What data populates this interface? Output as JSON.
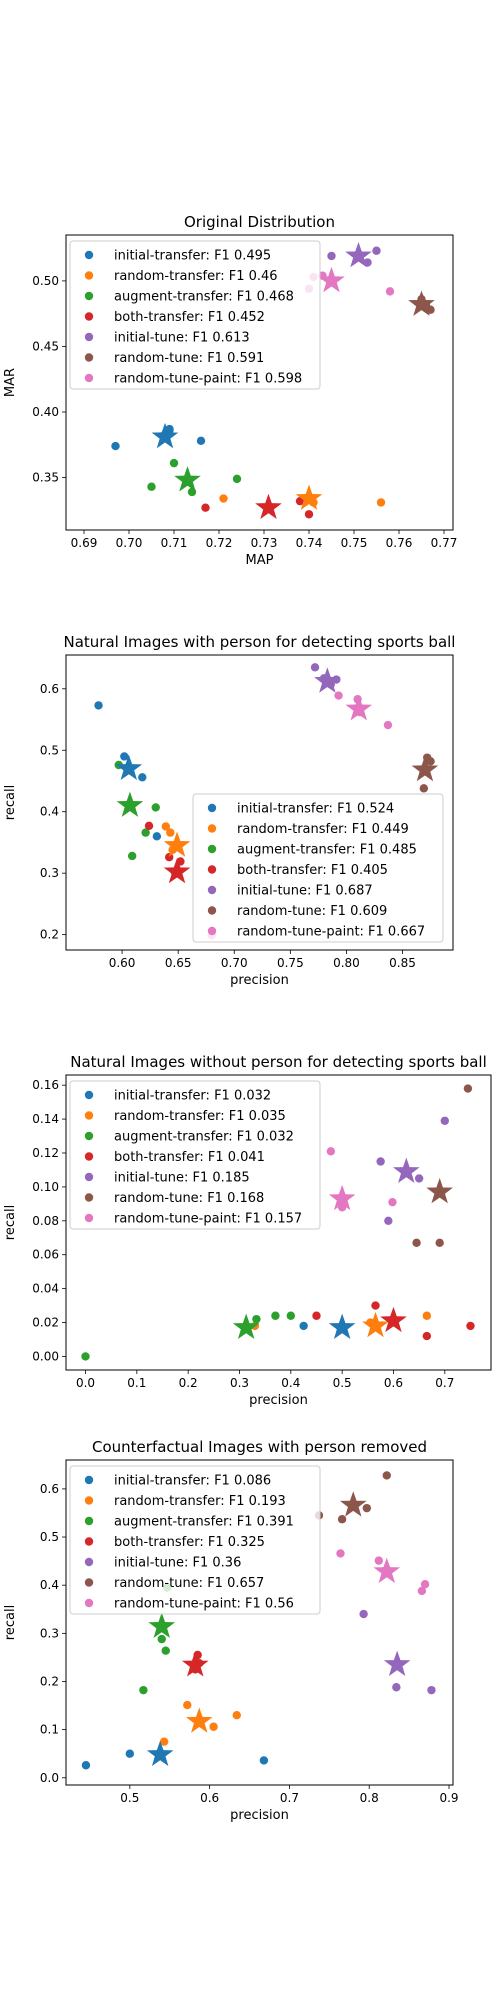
{
  "series_colors": [
    "#1f77b4",
    "#ff7f0e",
    "#2ca02c",
    "#d62728",
    "#9467bd",
    "#8c564b",
    "#e377c2"
  ],
  "chart_data": [
    {
      "type": "scatter",
      "title": "Original Distribution",
      "xlabel": "MAP",
      "ylabel": "MAR",
      "xlim": [
        0.686,
        0.772
      ],
      "ylim": [
        0.31,
        0.535
      ],
      "xticks": [
        0.69,
        0.7,
        0.71,
        0.72,
        0.73,
        0.74,
        0.75,
        0.76,
        0.77
      ],
      "xtick_labels": [
        "0.69",
        "0.70",
        "0.71",
        "0.72",
        "0.73",
        "0.74",
        "0.75",
        "0.76",
        "0.77"
      ],
      "yticks": [
        0.35,
        0.4,
        0.45,
        0.5
      ],
      "ytick_labels": [
        "0.35",
        "0.40",
        "0.45",
        "0.50"
      ],
      "legend_position": "upper-left",
      "series": [
        {
          "name": "initial-transfer: F1 0.495",
          "points": [
            [
              0.697,
              0.374
            ],
            [
              0.708,
              0.383
            ],
            [
              0.709,
              0.387
            ],
            [
              0.709,
              0.386
            ],
            [
              0.716,
              0.378
            ]
          ],
          "mean": [
            0.708,
            0.381
          ]
        },
        {
          "name": "random-transfer: F1 0.46",
          "points": [
            [
              0.721,
              0.334
            ],
            [
              0.74,
              0.334
            ],
            [
              0.741,
              0.331
            ],
            [
              0.756,
              0.331
            ]
          ],
          "mean": [
            0.74,
            0.334
          ]
        },
        {
          "name": "augment-transfer: F1 0.468",
          "points": [
            [
              0.705,
              0.343
            ],
            [
              0.71,
              0.361
            ],
            [
              0.714,
              0.339
            ],
            [
              0.724,
              0.349
            ]
          ],
          "mean": [
            0.713,
            0.348
          ]
        },
        {
          "name": "both-transfer: F1 0.452",
          "points": [
            [
              0.717,
              0.327
            ],
            [
              0.738,
              0.332
            ],
            [
              0.74,
              0.322
            ]
          ],
          "mean": [
            0.731,
            0.327
          ]
        },
        {
          "name": "initial-tune: F1 0.613",
          "points": [
            [
              0.745,
              0.519
            ],
            [
              0.753,
              0.514
            ],
            [
              0.755,
              0.523
            ]
          ],
          "mean": [
            0.751,
            0.519
          ]
        },
        {
          "name": "random-tune: F1 0.591",
          "points": [
            [
              0.765,
              0.486
            ],
            [
              0.766,
              0.482
            ],
            [
              0.767,
              0.478
            ]
          ],
          "mean": [
            0.765,
            0.482
          ]
        },
        {
          "name": "random-tune-paint: F1 0.598",
          "points": [
            [
              0.74,
              0.494
            ],
            [
              0.741,
              0.503
            ],
            [
              0.743,
              0.504
            ],
            [
              0.758,
              0.492
            ]
          ],
          "mean": [
            0.745,
            0.5
          ]
        }
      ]
    },
    {
      "type": "scatter",
      "title": "Natural Images with person for detecting sports ball",
      "xlabel": "precision",
      "ylabel": "recall",
      "xlim": [
        0.55,
        0.895
      ],
      "ylim": [
        0.175,
        0.655
      ],
      "xticks": [
        0.6,
        0.65,
        0.7,
        0.75,
        0.8,
        0.85
      ],
      "xtick_labels": [
        "0.60",
        "0.65",
        "0.70",
        "0.75",
        "0.80",
        "0.85"
      ],
      "yticks": [
        0.2,
        0.3,
        0.4,
        0.5,
        0.6
      ],
      "ytick_labels": [
        "0.2",
        "0.3",
        "0.4",
        "0.5",
        "0.6"
      ],
      "legend_position": "lower-right",
      "series": [
        {
          "name": "initial-transfer: F1 0.524",
          "points": [
            [
              0.579,
              0.573
            ],
            [
              0.602,
              0.49
            ],
            [
              0.618,
              0.456
            ],
            [
              0.631,
              0.36
            ]
          ],
          "mean": [
            0.606,
            0.47
          ]
        },
        {
          "name": "random-transfer: F1 0.449",
          "points": [
            [
              0.639,
              0.376
            ],
            [
              0.643,
              0.366
            ],
            [
              0.645,
              0.338
            ],
            [
              0.649,
              0.302
            ]
          ],
          "mean": [
            0.649,
            0.345
          ]
        },
        {
          "name": "augment-transfer: F1 0.485",
          "points": [
            [
              0.597,
              0.476
            ],
            [
              0.609,
              0.328
            ],
            [
              0.621,
              0.366
            ],
            [
              0.63,
              0.407
            ]
          ],
          "mean": [
            0.607,
            0.41
          ]
        },
        {
          "name": "both-transfer: F1 0.405",
          "points": [
            [
              0.624,
              0.377
            ],
            [
              0.642,
              0.326
            ],
            [
              0.647,
              0.302
            ],
            [
              0.652,
              0.319
            ]
          ],
          "mean": [
            0.649,
            0.302
          ]
        },
        {
          "name": "initial-tune: F1 0.687",
          "points": [
            [
              0.772,
              0.635
            ],
            [
              0.78,
              0.617
            ],
            [
              0.786,
              0.607
            ],
            [
              0.791,
              0.615
            ]
          ],
          "mean": [
            0.783,
            0.612
          ]
        },
        {
          "name": "random-tune: F1 0.609",
          "points": [
            [
              0.869,
              0.438
            ],
            [
              0.872,
              0.488
            ],
            [
              0.875,
              0.482
            ],
            [
              0.871,
              0.47
            ]
          ],
          "mean": [
            0.87,
            0.468
          ]
        },
        {
          "name": "random-tune-paint: F1 0.667",
          "points": [
            [
              0.68,
              0.199
            ],
            [
              0.793,
              0.589
            ],
            [
              0.81,
              0.583
            ],
            [
              0.812,
              0.562
            ],
            [
              0.837,
              0.541
            ]
          ],
          "mean": [
            0.811,
            0.567
          ]
        }
      ]
    },
    {
      "type": "scatter",
      "title": "Natural Images without person for detecting sports ball",
      "xlabel": "precision",
      "ylabel": "recall",
      "xlim": [
        -0.038,
        0.79
      ],
      "ylim": [
        -0.008,
        0.166
      ],
      "xticks": [
        0.0,
        0.1,
        0.2,
        0.3,
        0.4,
        0.5,
        0.6,
        0.7
      ],
      "xtick_labels": [
        "0.0",
        "0.1",
        "0.2",
        "0.3",
        "0.4",
        "0.5",
        "0.6",
        "0.7"
      ],
      "yticks": [
        0.0,
        0.02,
        0.04,
        0.06,
        0.08,
        0.1,
        0.12,
        0.14,
        0.16
      ],
      "ytick_labels": [
        "0.00",
        "0.02",
        "0.04",
        "0.06",
        "0.08",
        "0.10",
        "0.12",
        "0.14",
        "0.16"
      ],
      "legend_position": "upper-left",
      "series": [
        {
          "name": "initial-transfer: F1 0.032",
          "points": [
            [
              0.425,
              0.018
            ],
            [
              0.5,
              0.018
            ]
          ],
          "mean": [
            0.5,
            0.017
          ]
        },
        {
          "name": "random-transfer: F1 0.035",
          "points": [
            [
              0.33,
              0.018
            ],
            [
              0.555,
              0.02
            ],
            [
              0.665,
              0.024
            ]
          ],
          "mean": [
            0.565,
            0.018
          ]
        },
        {
          "name": "augment-transfer: F1 0.032",
          "points": [
            [
              0.0,
              0.0
            ],
            [
              0.333,
              0.022
            ],
            [
              0.37,
              0.024
            ],
            [
              0.4,
              0.024
            ]
          ],
          "mean": [
            0.313,
            0.017
          ]
        },
        {
          "name": "both-transfer: F1 0.041",
          "points": [
            [
              0.45,
              0.024
            ],
            [
              0.565,
              0.03
            ],
            [
              0.665,
              0.012
            ],
            [
              0.75,
              0.018
            ]
          ],
          "mean": [
            0.6,
            0.021
          ]
        },
        {
          "name": "initial-tune: F1 0.185",
          "points": [
            [
              0.575,
              0.115
            ],
            [
              0.59,
              0.08
            ],
            [
              0.65,
              0.105
            ],
            [
              0.7,
              0.139
            ]
          ],
          "mean": [
            0.625,
            0.109
          ]
        },
        {
          "name": "random-tune: F1 0.168",
          "points": [
            [
              0.645,
              0.067
            ],
            [
              0.69,
              0.067
            ],
            [
              0.745,
              0.158
            ]
          ],
          "mean": [
            0.69,
            0.097
          ]
        },
        {
          "name": "random-tune-paint: F1 0.157",
          "points": [
            [
              0.478,
              0.121
            ],
            [
              0.5,
              0.088
            ],
            [
              0.598,
              0.091
            ]
          ],
          "mean": [
            0.5,
            0.093
          ]
        }
      ]
    },
    {
      "type": "scatter",
      "title": "Counterfactual Images with person removed",
      "xlabel": "precision",
      "ylabel": "recall",
      "xlim": [
        0.42,
        0.905
      ],
      "ylim": [
        -0.015,
        0.66
      ],
      "xticks": [
        0.5,
        0.6,
        0.7,
        0.8,
        0.9
      ],
      "xtick_labels": [
        "0.5",
        "0.6",
        "0.7",
        "0.8",
        "0.9"
      ],
      "yticks": [
        0.0,
        0.1,
        0.2,
        0.3,
        0.4,
        0.5,
        0.6
      ],
      "ytick_labels": [
        "0.0",
        "0.1",
        "0.2",
        "0.3",
        "0.4",
        "0.5",
        "0.6"
      ],
      "legend_position": "upper-left",
      "series": [
        {
          "name": "initial-transfer: F1 0.086",
          "points": [
            [
              0.445,
              0.026
            ],
            [
              0.5,
              0.05
            ],
            [
              0.668,
              0.036
            ]
          ],
          "mean": [
            0.538,
            0.048
          ]
        },
        {
          "name": "random-transfer: F1 0.193",
          "points": [
            [
              0.543,
              0.075
            ],
            [
              0.572,
              0.151
            ],
            [
              0.605,
              0.106
            ],
            [
              0.634,
              0.13
            ]
          ],
          "mean": [
            0.587,
            0.117
          ]
        },
        {
          "name": "augment-transfer: F1 0.391",
          "points": [
            [
              0.517,
              0.182
            ],
            [
              0.54,
              0.288
            ],
            [
              0.545,
              0.264
            ],
            [
              0.547,
              0.395
            ]
          ],
          "mean": [
            0.54,
            0.314
          ]
        },
        {
          "name": "both-transfer: F1 0.325",
          "points": [
            [
              0.582,
              0.225
            ],
            [
              0.585,
              0.255
            ],
            [
              0.587,
              0.238
            ]
          ],
          "mean": [
            0.582,
            0.234
          ]
        },
        {
          "name": "initial-tune: F1 0.36",
          "points": [
            [
              0.793,
              0.34
            ],
            [
              0.834,
              0.188
            ],
            [
              0.878,
              0.182
            ]
          ],
          "mean": [
            0.835,
            0.235
          ]
        },
        {
          "name": "random-tune: F1 0.657",
          "points": [
            [
              0.737,
              0.545
            ],
            [
              0.766,
              0.537
            ],
            [
              0.797,
              0.56
            ],
            [
              0.822,
              0.628
            ]
          ],
          "mean": [
            0.78,
            0.566
          ]
        },
        {
          "name": "random-tune-paint: F1 0.56",
          "points": [
            [
              0.764,
              0.466
            ],
            [
              0.812,
              0.451
            ],
            [
              0.866,
              0.388
            ],
            [
              0.87,
              0.402
            ]
          ],
          "mean": [
            0.822,
            0.428
          ]
        }
      ]
    }
  ]
}
